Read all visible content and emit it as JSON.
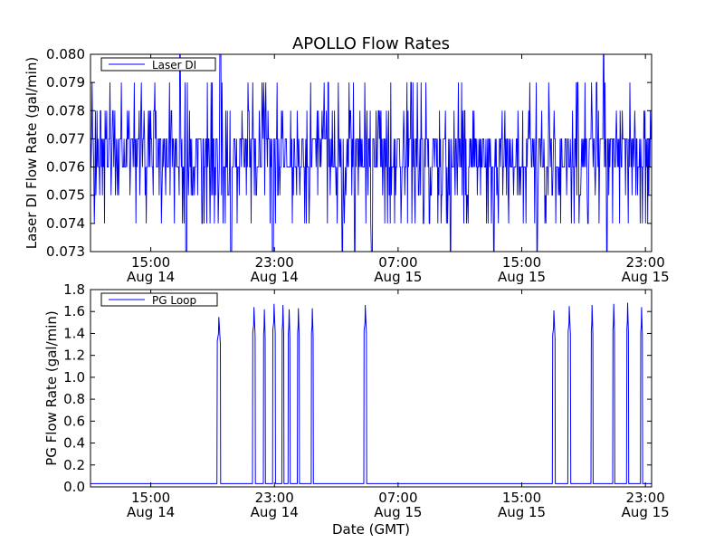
{
  "title": "APOLLO Flow Rates",
  "xlabel": "Date (GMT)",
  "x_ticks": [
    {
      "time": "15:00",
      "date": "Aug 14",
      "hour": 15
    },
    {
      "time": "23:00",
      "date": "Aug 14",
      "hour": 23
    },
    {
      "time": "07:00",
      "date": "Aug 15",
      "hour": 31
    },
    {
      "time": "15:00",
      "date": "Aug 15",
      "hour": 39
    },
    {
      "time": "23:00",
      "date": "Aug 15",
      "hour": 47
    }
  ],
  "colors": {
    "line": "#0000ff",
    "axes": "#000000"
  },
  "chart_data": [
    {
      "type": "line",
      "ylabel": "Laser DI Flow Rate (gal/min)",
      "xlim_hours": [
        11.1,
        47.4
      ],
      "ylim": [
        0.073,
        0.08
      ],
      "yticks": [
        "0.073",
        "0.074",
        "0.075",
        "0.076",
        "0.077",
        "0.078",
        "0.079",
        "0.080"
      ],
      "legend": "upper-left",
      "series": [
        {
          "name": "Laser DI",
          "baseline": 0.0765,
          "typical_range": [
            0.075,
            0.078
          ],
          "noise_levels": [
            0.074,
            0.075,
            0.076,
            0.077,
            0.078,
            0.079
          ],
          "extreme_drops_to": 0.073,
          "spike_up_to": 0.08,
          "drops_at_hours": [
            17.3,
            20.2,
            22.9,
            27.4,
            28.2,
            29.3,
            34.4,
            37.2,
            40.0,
            44.5
          ],
          "spikes_at_hours": [
            16.9,
            19.5,
            44.3
          ]
        }
      ]
    },
    {
      "type": "line",
      "ylabel": "PG Flow Rate (gal/min)",
      "xlim_hours": [
        11.1,
        47.4
      ],
      "ylim": [
        0.0,
        1.8
      ],
      "yticks": [
        "0.0",
        "0.2",
        "0.4",
        "0.6",
        "0.8",
        "1.0",
        "1.2",
        "1.4",
        "1.6",
        "1.8"
      ],
      "legend": "upper-left",
      "series": [
        {
          "name": "PG Loop",
          "baseline": 0.03,
          "pulses": [
            {
              "start_hour": 19.3,
              "end_hour": 19.5,
              "peak": 1.55
            },
            {
              "start_hour": 21.6,
              "end_hour": 21.75,
              "peak": 1.64
            },
            {
              "start_hour": 22.3,
              "end_hour": 22.4,
              "peak": 1.62
            },
            {
              "start_hour": 22.9,
              "end_hour": 23.05,
              "peak": 1.67
            },
            {
              "start_hour": 23.5,
              "end_hour": 23.6,
              "peak": 1.66
            },
            {
              "start_hour": 23.9,
              "end_hour": 24.0,
              "peak": 1.62
            },
            {
              "start_hour": 24.5,
              "end_hour": 24.6,
              "peak": 1.63
            },
            {
              "start_hour": 25.4,
              "end_hour": 25.5,
              "peak": 1.63
            },
            {
              "start_hour": 28.8,
              "end_hour": 28.95,
              "peak": 1.66
            },
            {
              "start_hour": 41.0,
              "end_hour": 41.15,
              "peak": 1.61
            },
            {
              "start_hour": 42.0,
              "end_hour": 42.15,
              "peak": 1.65
            },
            {
              "start_hour": 43.5,
              "end_hour": 43.6,
              "peak": 1.66
            },
            {
              "start_hour": 44.9,
              "end_hour": 45.0,
              "peak": 1.67
            },
            {
              "start_hour": 45.8,
              "end_hour": 45.9,
              "peak": 1.68
            },
            {
              "start_hour": 46.7,
              "end_hour": 46.8,
              "peak": 1.64
            }
          ]
        }
      ]
    }
  ]
}
